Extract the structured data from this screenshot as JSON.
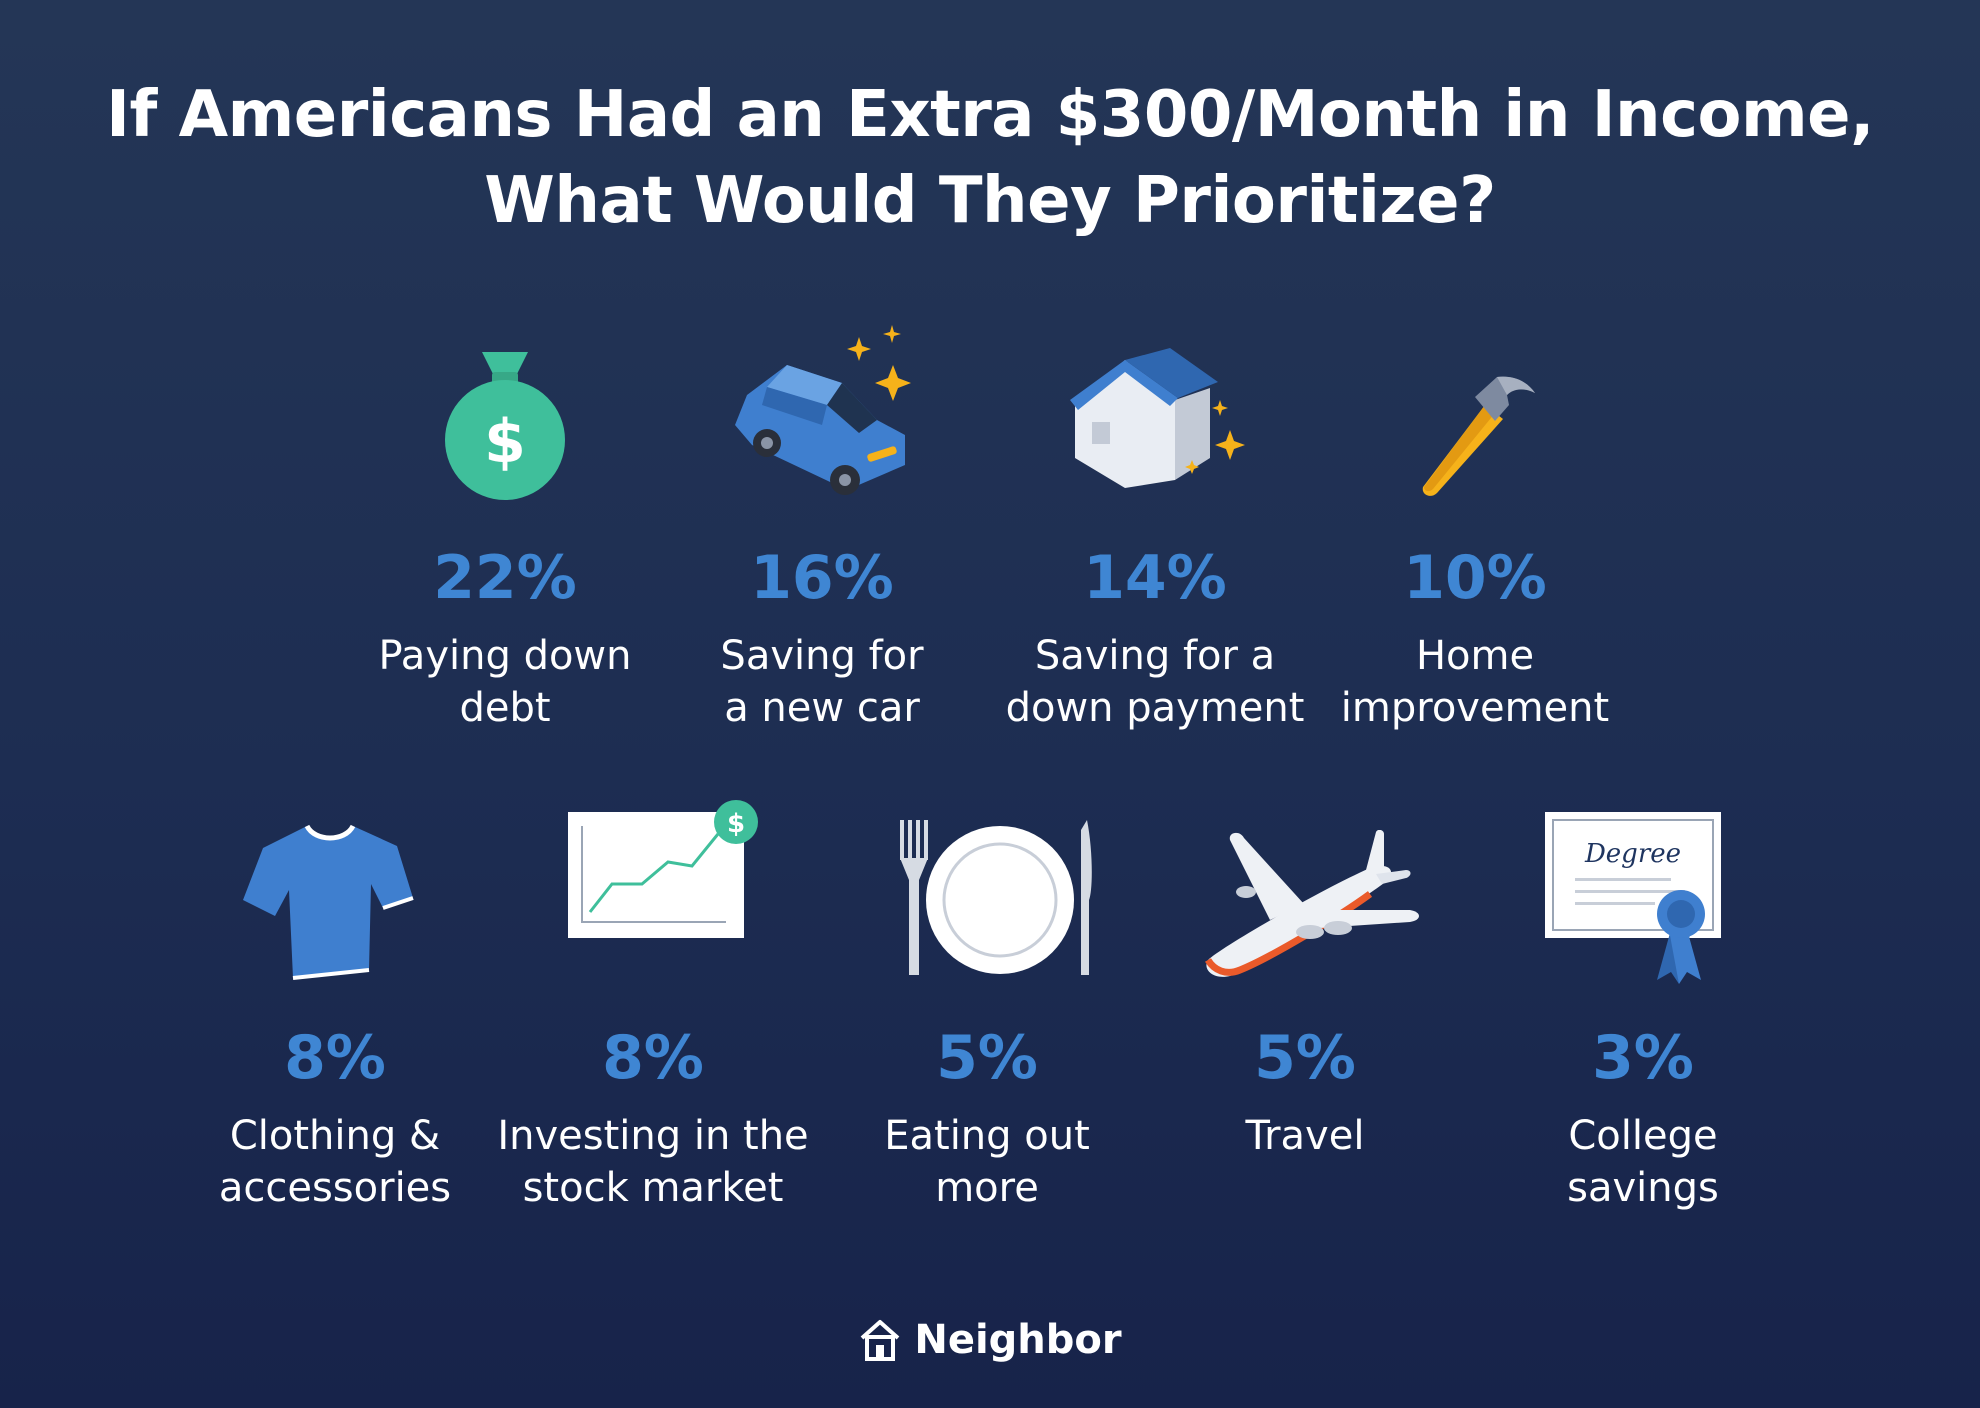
{
  "title": {
    "line1": "If Americans Had an Extra $300/Month in Income,",
    "line2": "What Would They Prioritize?"
  },
  "items": [
    {
      "percent": "22%",
      "label_line1": "Paying down",
      "label_line2": "debt",
      "icon": "money-bag-icon"
    },
    {
      "percent": "16%",
      "label_line1": "Saving for",
      "label_line2": "a new car",
      "icon": "car-icon"
    },
    {
      "percent": "14%",
      "label_line1": "Saving for a",
      "label_line2": "down payment",
      "icon": "house-icon"
    },
    {
      "percent": "10%",
      "label_line1": "Home",
      "label_line2": "improvement",
      "icon": "hammer-icon"
    },
    {
      "percent": "8%",
      "label_line1": "Clothing &",
      "label_line2": "accessories",
      "icon": "tshirt-icon"
    },
    {
      "percent": "8%",
      "label_line1": "Investing in the",
      "label_line2": "stock market",
      "icon": "stock-chart-icon"
    },
    {
      "percent": "5%",
      "label_line1": "Eating out",
      "label_line2": "more",
      "icon": "plate-icon"
    },
    {
      "percent": "5%",
      "label_line1": "Travel",
      "label_line2": "",
      "icon": "airplane-icon"
    },
    {
      "percent": "3%",
      "label_line1": "College",
      "label_line2": "savings",
      "icon": "diploma-icon"
    }
  ],
  "icon_text": {
    "dollar_sign": "$",
    "degree": "Degree"
  },
  "footer": {
    "brand": "Neighbor",
    "icon": "neighbor-house-logo-icon"
  },
  "colors": {
    "background_top": "#243656",
    "background_bottom": "#17234a",
    "percent": "#3f86d3",
    "text": "#ffffff",
    "accent_green": "#3fbf9b",
    "accent_blue": "#3f7fcf",
    "accent_yellow": "#f6b21a"
  }
}
